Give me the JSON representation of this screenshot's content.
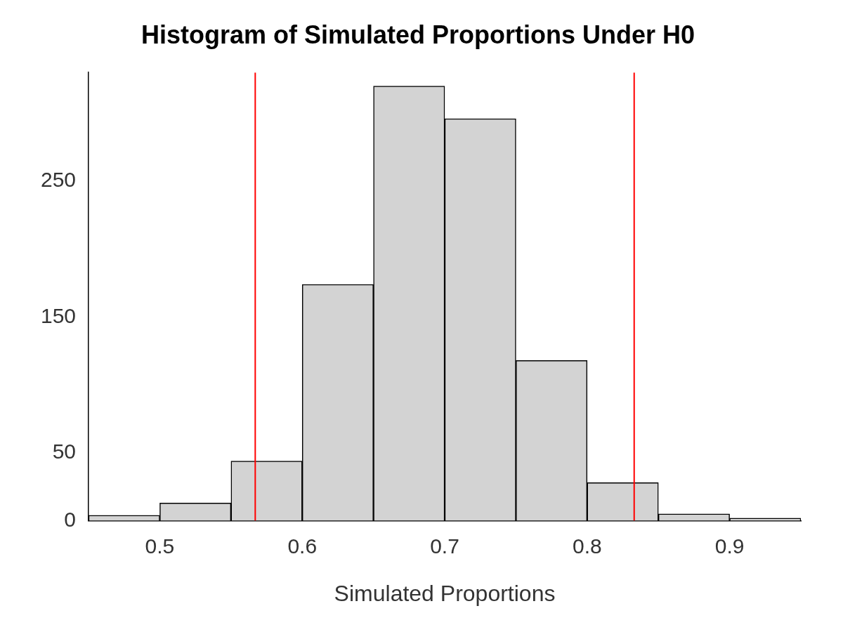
{
  "chart_data": {
    "type": "histogram",
    "title": "Histogram of Simulated Proportions Under H0",
    "x_label": "Simulated Proportions",
    "bins": [
      0.45,
      0.5,
      0.55,
      0.6,
      0.65,
      0.7,
      0.75,
      0.8,
      0.85,
      0.9,
      0.95
    ],
    "values": [
      4,
      13,
      44,
      174,
      320,
      296,
      118,
      28,
      5,
      2
    ],
    "color": "#d3d3d3",
    "xlim": [
      0.45,
      0.95
    ],
    "xticks": [
      0.5,
      0.6,
      0.7,
      0.8,
      0.9
    ],
    "ylim": [
      0,
      330
    ],
    "yticks": [
      0,
      50,
      150,
      250
    ],
    "grid": false,
    "reference_lines": {
      "values": [
        0.567,
        0.833
      ],
      "color": "#ff0000"
    }
  }
}
